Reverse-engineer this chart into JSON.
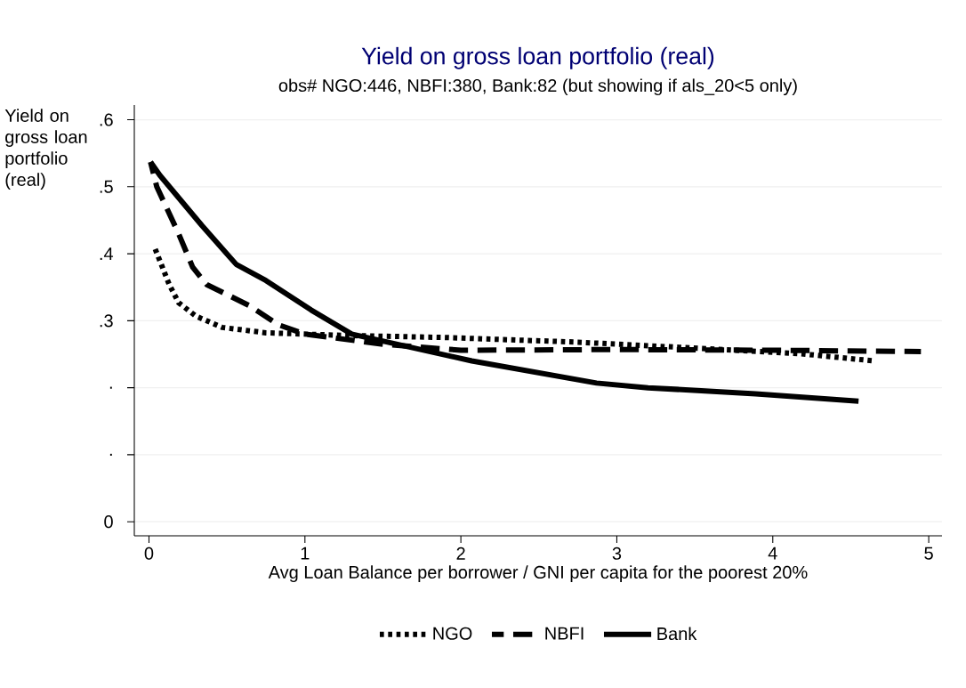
{
  "chart_data": {
    "type": "line",
    "title": "Yield on gross loan portfolio (real)",
    "subtitle": "obs# NGO:446, NBFI:380, Bank:82 (but showing if als_20<5 only)",
    "xlabel": "Avg Loan Balance per borrower / GNI per capita for the poorest 20%",
    "ylabel": "Yield on gross loan portfolio (real)",
    "xlim": [
      -0.094,
      5.085
    ],
    "ylim": [
      -0.021,
      0.622
    ],
    "xticks": [
      0,
      1,
      2,
      3,
      4,
      5
    ],
    "yticks": [
      0,
      {
        "value": 0.1,
        "label": "."
      },
      {
        "value": 0.2,
        "label": "."
      },
      {
        "value": 0.3,
        "label": ".3"
      },
      {
        "value": 0.4,
        "label": ".4"
      },
      {
        "value": 0.5,
        "label": ".5"
      },
      {
        "value": 0.6,
        "label": ".6"
      }
    ],
    "grid": "y",
    "legend": "bottom",
    "marker": "none",
    "series": [
      {
        "name": "NGO",
        "color": "#000000",
        "line_style": "dotted",
        "x": [
          0.04,
          0.13,
          0.19,
          0.3,
          0.47,
          0.75,
          1.27,
          1.9,
          2.75,
          3.6,
          4.17,
          4.65
        ],
        "values": [
          0.407,
          0.354,
          0.327,
          0.307,
          0.29,
          0.282,
          0.278,
          0.275,
          0.268,
          0.258,
          0.251,
          0.24
        ]
      },
      {
        "name": "NBFI",
        "color": "#000000",
        "line_style": "dashed",
        "x": [
          0.01,
          0.05,
          0.19,
          0.28,
          0.37,
          0.64,
          0.83,
          1.0,
          1.5,
          2.0,
          3.0,
          4.0,
          4.95
        ],
        "values": [
          0.537,
          0.5,
          0.43,
          0.38,
          0.354,
          0.323,
          0.294,
          0.28,
          0.265,
          0.256,
          0.257,
          0.256,
          0.254
        ]
      },
      {
        "name": "Bank",
        "color": "#000000",
        "line_style": "solid",
        "x": [
          0.01,
          0.07,
          0.34,
          0.56,
          0.75,
          1.04,
          1.3,
          2.07,
          2.87,
          3.2,
          3.89,
          4.55
        ],
        "values": [
          0.537,
          0.517,
          0.442,
          0.384,
          0.36,
          0.316,
          0.28,
          0.24,
          0.207,
          0.2,
          0.191,
          0.18
        ]
      }
    ]
  }
}
